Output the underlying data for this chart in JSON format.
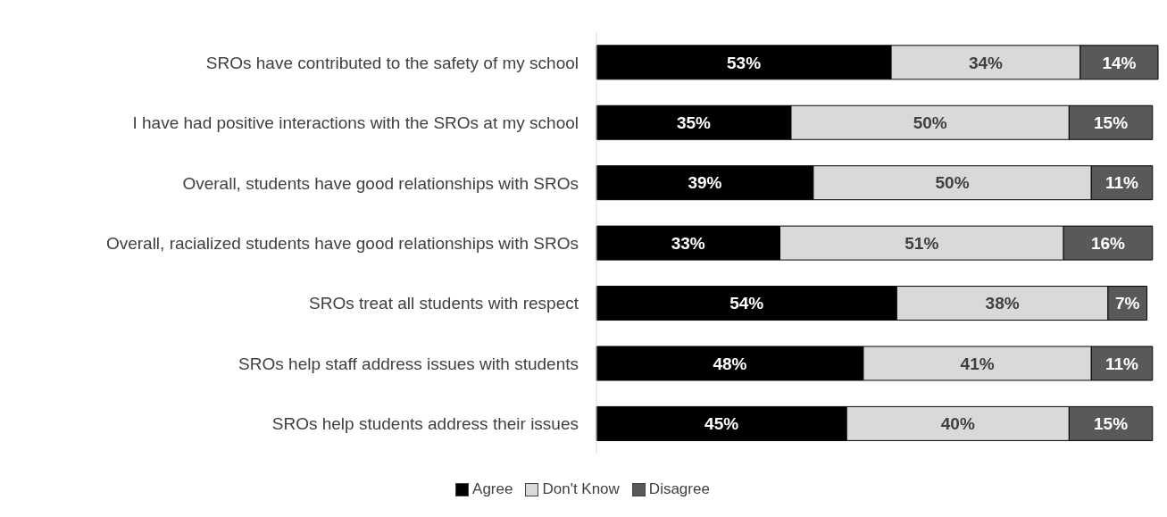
{
  "chart_data": {
    "type": "bar",
    "orientation": "horizontal",
    "stacked": true,
    "legend": "bottom",
    "grid": false,
    "categories": [
      "SROs have contributed to the safety of my school",
      "I have had positive interactions with the SROs at my school",
      "Overall, students have good relationships with SROs",
      "Overall, racialized students have good relationships with SROs",
      "SROs treat all students with respect",
      "SROs help staff address issues with students",
      "SROs help students address their issues"
    ],
    "series": [
      {
        "name": "Agree",
        "color": "#000000",
        "values": [
          53,
          35,
          39,
          33,
          54,
          48,
          45
        ],
        "value_labels": [
          "53%",
          "35%",
          "39%",
          "33%",
          "54%",
          "48%",
          "45%"
        ]
      },
      {
        "name": "Don't Know",
        "color": "#d9d9d9",
        "values": [
          34,
          50,
          50,
          51,
          38,
          41,
          40
        ],
        "value_labels": [
          "34%",
          "50%",
          "50%",
          "51%",
          "38%",
          "41%",
          "40%"
        ]
      },
      {
        "name": "Disagree",
        "color": "#595959",
        "values": [
          14,
          15,
          11,
          16,
          7,
          11,
          15
        ],
        "value_labels": [
          "14%",
          "15%",
          "11%",
          "16%",
          "7%",
          "11%",
          "15%"
        ]
      }
    ]
  }
}
